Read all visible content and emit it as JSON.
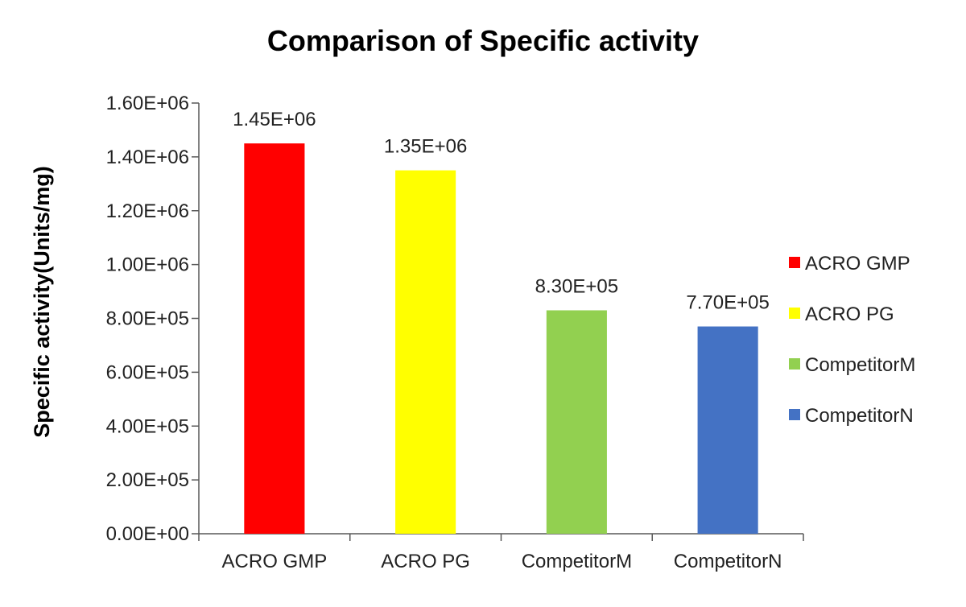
{
  "chart_data": {
    "type": "bar",
    "title": "Comparison of Specific activity",
    "xlabel": "",
    "ylabel": "Specific activity(Units/mg)",
    "categories": [
      "ACRO GMP",
      "ACRO PG",
      "CompetitorM",
      "CompetitorN"
    ],
    "values": [
      1450000,
      1350000,
      830000,
      770000
    ],
    "data_labels": [
      "1.45E+06",
      "1.35E+06",
      "8.30E+05",
      "7.70E+05"
    ],
    "colors": [
      "#ff0000",
      "#ffff00",
      "#92d050",
      "#4472c4"
    ],
    "ylim": [
      0,
      1600000
    ],
    "yticks": [
      {
        "value": 0,
        "label": "0.00E+00"
      },
      {
        "value": 200000,
        "label": "2.00E+05"
      },
      {
        "value": 400000,
        "label": "4.00E+05"
      },
      {
        "value": 600000,
        "label": "6.00E+05"
      },
      {
        "value": 800000,
        "label": "8.00E+05"
      },
      {
        "value": 1000000,
        "label": "1.00E+06"
      },
      {
        "value": 1200000,
        "label": "1.20E+06"
      },
      {
        "value": 1400000,
        "label": "1.40E+06"
      },
      {
        "value": 1600000,
        "label": "1.60E+06"
      }
    ],
    "grid": false,
    "legend": {
      "placement": "right",
      "entries": [
        "ACRO GMP",
        "ACRO PG",
        "CompetitorM",
        "CompetitorN"
      ]
    }
  }
}
